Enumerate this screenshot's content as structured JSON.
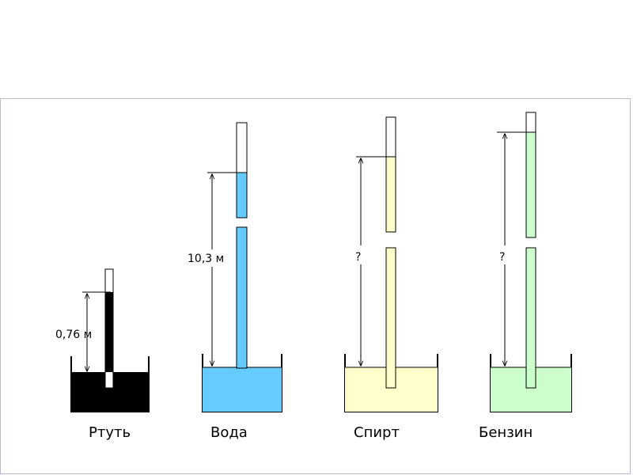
{
  "liquids": [
    {
      "name": "Ртуть",
      "height_label": "0,76 м",
      "color": "#000000"
    },
    {
      "name": "Вода",
      "height_label": "10,3 м",
      "color": "#66ccff"
    },
    {
      "name": "Спирт",
      "height_label": "?",
      "color": "#ffffcc"
    },
    {
      "name": "Бензин",
      "height_label": "?",
      "color": "#ccffcc"
    }
  ]
}
